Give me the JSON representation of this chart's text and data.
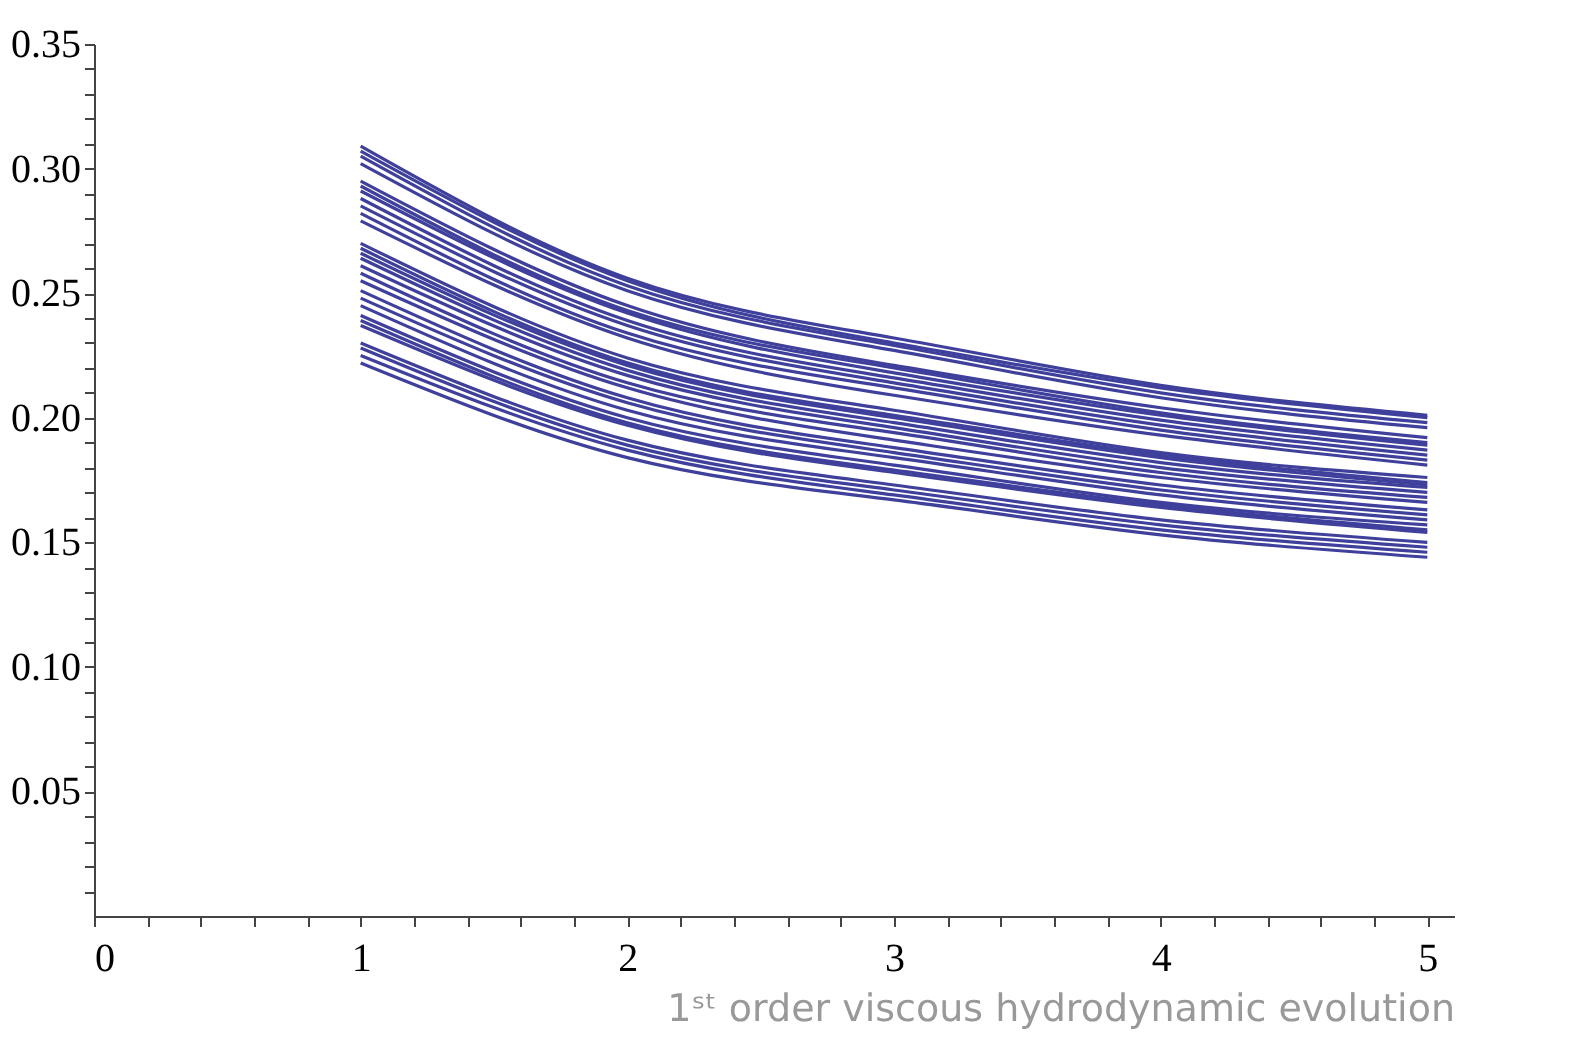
{
  "chart_data": {
    "type": "line",
    "xlabel": "1ˢᵗ order viscous hydrodynamic evolution",
    "xlim": [
      0,
      5.1
    ],
    "ylim": [
      0,
      0.35
    ],
    "xticks": [
      0,
      {
        "value": 0.2,
        "label": null
      },
      {
        "value": 0.4,
        "label": null
      },
      {
        "value": 0.6,
        "label": null
      },
      {
        "value": 0.8,
        "label": null
      },
      1,
      {
        "value": 1.2,
        "label": null
      },
      {
        "value": 1.4,
        "label": null
      },
      {
        "value": 1.6,
        "label": null
      },
      {
        "value": 1.8,
        "label": null
      },
      2,
      {
        "value": 2.2,
        "label": null
      },
      {
        "value": 2.4,
        "label": null
      },
      {
        "value": 2.6,
        "label": null
      },
      {
        "value": 2.8,
        "label": null
      },
      3,
      {
        "value": 3.2,
        "label": null
      },
      {
        "value": 3.4,
        "label": null
      },
      {
        "value": 3.6,
        "label": null
      },
      {
        "value": 3.8,
        "label": null
      },
      4,
      {
        "value": 4.2,
        "label": null
      },
      {
        "value": 4.4,
        "label": null
      },
      {
        "value": 4.6,
        "label": null
      },
      {
        "value": 4.8,
        "label": null
      },
      5
    ],
    "yticks": [
      {
        "value": 0.01,
        "label": null
      },
      {
        "value": 0.02,
        "label": null
      },
      {
        "value": 0.03,
        "label": null
      },
      {
        "value": 0.04,
        "label": null
      },
      0.05,
      {
        "value": 0.06,
        "label": null
      },
      {
        "value": 0.07,
        "label": null
      },
      {
        "value": 0.08,
        "label": null
      },
      {
        "value": 0.09,
        "label": null
      },
      {
        "value": 0.1,
        "label": "0.10"
      },
      {
        "value": 0.11,
        "label": null
      },
      {
        "value": 0.12,
        "label": null
      },
      {
        "value": 0.13,
        "label": null
      },
      {
        "value": 0.14,
        "label": null
      },
      0.15,
      {
        "value": 0.16,
        "label": null
      },
      {
        "value": 0.17,
        "label": null
      },
      {
        "value": 0.18,
        "label": null
      },
      {
        "value": 0.19,
        "label": null
      },
      {
        "value": 0.2,
        "label": "0.20"
      },
      {
        "value": 0.21,
        "label": null
      },
      {
        "value": 0.22,
        "label": null
      },
      {
        "value": 0.23,
        "label": null
      },
      {
        "value": 0.24,
        "label": null
      },
      0.25,
      {
        "value": 0.26,
        "label": null
      },
      {
        "value": 0.27,
        "label": null
      },
      {
        "value": 0.28,
        "label": null
      },
      {
        "value": 0.29,
        "label": null
      },
      {
        "value": 0.3,
        "label": "0.30"
      },
      {
        "value": 0.31,
        "label": null
      },
      {
        "value": 0.32,
        "label": null
      },
      {
        "value": 0.33,
        "label": null
      },
      {
        "value": 0.34,
        "label": null
      },
      0.35
    ],
    "x": [
      1,
      2,
      3,
      4,
      5
    ],
    "grid": false,
    "legend": false,
    "line_style": "solid",
    "marker": "none",
    "series": [
      {
        "color": "#3f3f9c",
        "values": [
          0.309,
          0.256,
          0.232,
          0.213,
          0.201
        ]
      },
      {
        "color": "#3f3f9c",
        "values": [
          0.307,
          0.255,
          0.23,
          0.212,
          0.2
        ]
      },
      {
        "color": "#3f3f9c",
        "values": [
          0.305,
          0.253,
          0.229,
          0.21,
          0.198
        ]
      },
      {
        "color": "#3f3f9c",
        "values": [
          0.302,
          0.251,
          0.227,
          0.208,
          0.196
        ]
      },
      {
        "color": "#3f3f9c",
        "values": [
          0.295,
          0.245,
          0.221,
          0.204,
          0.192
        ]
      },
      {
        "color": "#3f3f9c",
        "values": [
          0.293,
          0.243,
          0.22,
          0.202,
          0.19
        ]
      },
      {
        "color": "#3f3f9c",
        "values": [
          0.291,
          0.242,
          0.218,
          0.201,
          0.189
        ]
      },
      {
        "color": "#3f3f9c",
        "values": [
          0.288,
          0.239,
          0.216,
          0.199,
          0.187
        ]
      },
      {
        "color": "#3f3f9c",
        "values": [
          0.285,
          0.237,
          0.214,
          0.197,
          0.185
        ]
      },
      {
        "color": "#3f3f9c",
        "values": [
          0.282,
          0.234,
          0.212,
          0.195,
          0.183
        ]
      },
      {
        "color": "#3f3f9c",
        "values": [
          0.279,
          0.232,
          0.209,
          0.193,
          0.181
        ]
      },
      {
        "color": "#3f3f9c",
        "values": [
          0.27,
          0.224,
          0.203,
          0.186,
          0.176
        ]
      },
      {
        "color": "#3f3f9c",
        "values": [
          0.268,
          0.222,
          0.201,
          0.185,
          0.174
        ]
      },
      {
        "color": "#3f3f9c",
        "values": [
          0.266,
          0.221,
          0.2,
          0.184,
          0.173
        ]
      },
      {
        "color": "#3f3f9c",
        "values": [
          0.264,
          0.219,
          0.198,
          0.182,
          0.172
        ]
      },
      {
        "color": "#3f3f9c",
        "values": [
          0.261,
          0.217,
          0.196,
          0.18,
          0.17
        ]
      },
      {
        "color": "#3f3f9c",
        "values": [
          0.258,
          0.214,
          0.194,
          0.178,
          0.168
        ]
      },
      {
        "color": "#3f3f9c",
        "values": [
          0.255,
          0.212,
          0.191,
          0.176,
          0.166
        ]
      },
      {
        "color": "#3f3f9c",
        "values": [
          0.251,
          0.208,
          0.188,
          0.173,
          0.163
        ]
      },
      {
        "color": "#3f3f9c",
        "values": [
          0.248,
          0.206,
          0.186,
          0.171,
          0.161
        ]
      },
      {
        "color": "#3f3f9c",
        "values": [
          0.245,
          0.203,
          0.184,
          0.169,
          0.159
        ]
      },
      {
        "color": "#3f3f9c",
        "values": [
          0.241,
          0.2,
          0.181,
          0.166,
          0.157
        ]
      },
      {
        "color": "#3f3f9c",
        "values": [
          0.239,
          0.198,
          0.179,
          0.165,
          0.155
        ]
      },
      {
        "color": "#3f3f9c",
        "values": [
          0.237,
          0.197,
          0.178,
          0.164,
          0.154
        ]
      },
      {
        "color": "#3f3f9c",
        "values": [
          0.23,
          0.191,
          0.173,
          0.159,
          0.15
        ]
      },
      {
        "color": "#3f3f9c",
        "values": [
          0.228,
          0.189,
          0.171,
          0.157,
          0.148
        ]
      },
      {
        "color": "#3f3f9c",
        "values": [
          0.225,
          0.187,
          0.169,
          0.155,
          0.146
        ]
      },
      {
        "color": "#3f3f9c",
        "values": [
          0.222,
          0.184,
          0.167,
          0.153,
          0.144
        ]
      }
    ]
  }
}
